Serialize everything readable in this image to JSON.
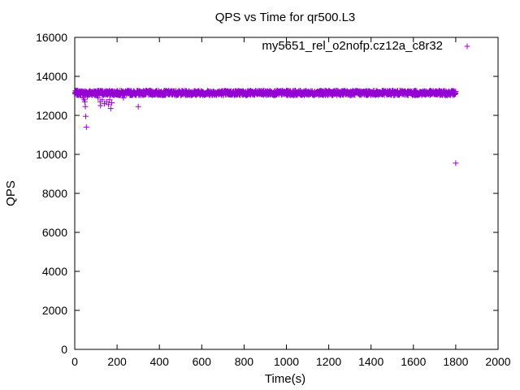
{
  "chart_data": {
    "type": "scatter",
    "title": "QPS vs Time for qr500.L3",
    "xlabel": "Time(s)",
    "ylabel": "QPS",
    "xlim": [
      0,
      2000
    ],
    "ylim": [
      0,
      16000
    ],
    "xticks": [
      "0",
      "200",
      "400",
      "600",
      "800",
      "1000",
      "1200",
      "1400",
      "1600",
      "1800",
      "2000"
    ],
    "yticks": [
      "0",
      "2000",
      "4000",
      "6000",
      "8000",
      "10000",
      "12000",
      "14000",
      "16000"
    ],
    "grid": false,
    "legend_position": "top-right",
    "series": [
      {
        "name": "my5651_rel_o2nofp.cz12a_c8r32",
        "color": "#9400d3",
        "marker": "plus",
        "dense_band": {
          "x_range": [
            1,
            1800
          ],
          "y_center": 13150,
          "y_spread": 120
        },
        "points": [
          {
            "x": 40,
            "y": 12900
          },
          {
            "x": 45,
            "y": 12800
          },
          {
            "x": 48,
            "y": 12700
          },
          {
            "x": 50,
            "y": 12450
          },
          {
            "x": 52,
            "y": 11950
          },
          {
            "x": 55,
            "y": 11400
          },
          {
            "x": 60,
            "y": 12950
          },
          {
            "x": 110,
            "y": 12900
          },
          {
            "x": 120,
            "y": 12700
          },
          {
            "x": 122,
            "y": 12500
          },
          {
            "x": 130,
            "y": 12800
          },
          {
            "x": 140,
            "y": 12600
          },
          {
            "x": 150,
            "y": 12700
          },
          {
            "x": 160,
            "y": 12550
          },
          {
            "x": 165,
            "y": 12800
          },
          {
            "x": 170,
            "y": 12350
          },
          {
            "x": 175,
            "y": 12650
          },
          {
            "x": 230,
            "y": 12900
          },
          {
            "x": 300,
            "y": 12450
          },
          {
            "x": 1800,
            "y": 9550
          }
        ]
      }
    ]
  }
}
